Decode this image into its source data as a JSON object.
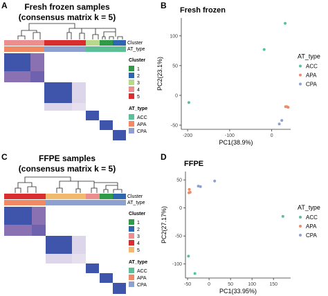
{
  "colors": {
    "heat_high": "#3f55ac",
    "heat_mid": "#8a72b2",
    "heat_low": "#ddd6ea",
    "cluster1": "#2f9a47",
    "cluster2": "#2f66b0",
    "cluster3": "#b8d98c",
    "cluster4": "#eb8e8d",
    "cluster5": "#d92e2f",
    "acc": "#5dbf96",
    "apa": "#f08a64",
    "cpa": "#8ea1ce",
    "ffpe_c4": "#f1b96e"
  },
  "panels": {
    "a": {
      "letter": "A",
      "title_line1": "Fresh frozen samples",
      "title_line2": "(consensus matrix k = 5)",
      "track_label_cluster": "Cluster",
      "track_label_type": "AT_type",
      "legend_cluster_title": "Cluster",
      "legend_cluster_items": [
        "1",
        "2",
        "3",
        "4",
        "5"
      ],
      "legend_type_title": "AT_type",
      "legend_type_items": [
        "ACC",
        "APA",
        "CPA"
      ]
    },
    "c": {
      "letter": "C",
      "title_line1": "FFPE samples",
      "title_line2": "(consensus matrix k = 5)",
      "track_label_cluster": "Cluster",
      "track_label_type": "AT_type",
      "legend_cluster_title": "Cluster",
      "legend_cluster_items": [
        "1",
        "2",
        "3",
        "4",
        "5"
      ],
      "legend_type_title": "AT_type",
      "legend_type_items": [
        "ACC",
        "APA",
        "CPA"
      ]
    }
  },
  "chart_data": [
    {
      "panel": "B",
      "type": "scatter",
      "title": "Fresh frozen",
      "xlabel": "PC1(38.9%)",
      "ylabel": "PC2(23.1%)",
      "xlim": [
        -215,
        45
      ],
      "ylim": [
        -57,
        130
      ],
      "xticks": [
        -200,
        -100,
        0
      ],
      "yticks": [
        -50,
        0,
        50,
        100
      ],
      "legend_title": "AT_type",
      "legend_position": "right",
      "series": [
        {
          "name": "ACC",
          "points": [
            [
              -197,
              -12
            ],
            [
              -18,
              77
            ],
            [
              32,
              121
            ]
          ]
        },
        {
          "name": "APA",
          "points": [
            [
              33,
              -19
            ],
            [
              36,
              -19
            ],
            [
              39,
              -20
            ]
          ]
        },
        {
          "name": "CPA",
          "points": [
            [
              18,
              -48
            ],
            [
              24,
              -42
            ]
          ]
        }
      ]
    },
    {
      "panel": "D",
      "type": "scatter",
      "title": "FFPE",
      "xlabel": "PC1(33.95%)",
      "ylabel": "PC2(27.17%)",
      "xlim": [
        -55,
        190
      ],
      "ylim": [
        -125,
        65
      ],
      "xticks": [
        -50,
        0,
        50,
        100,
        150
      ],
      "yticks": [
        -100,
        -50,
        0,
        50
      ],
      "legend_title": "AT_type",
      "legend_position": "right",
      "series": [
        {
          "name": "ACC",
          "points": [
            [
              172,
              -15
            ],
            [
              -48,
              -86
            ],
            [
              -33,
              -117
            ]
          ]
        },
        {
          "name": "APA",
          "points": [
            [
              -46,
              33
            ],
            [
              -44,
              28
            ],
            [
              -47,
              27
            ]
          ]
        },
        {
          "name": "CPA",
          "points": [
            [
              -25,
              39
            ],
            [
              -20,
              38
            ],
            [
              13,
              48
            ]
          ]
        }
      ]
    }
  ]
}
